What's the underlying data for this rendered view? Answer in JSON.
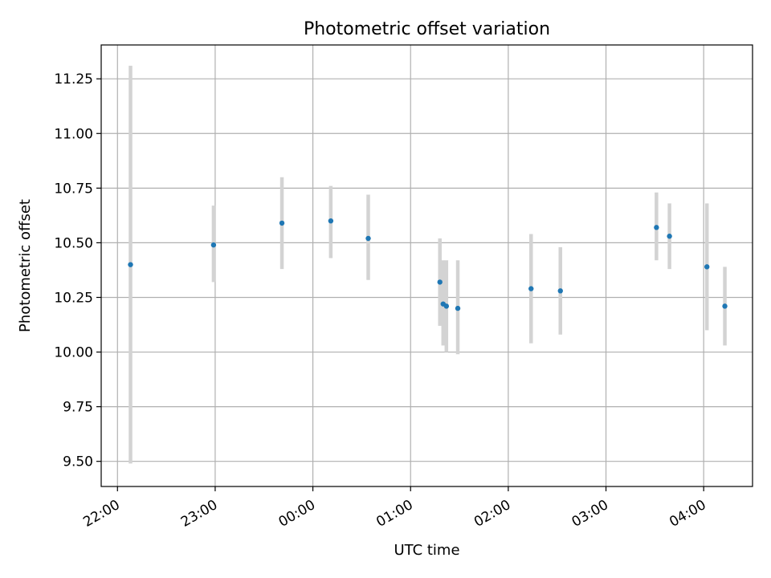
{
  "chart_data": {
    "type": "scatter",
    "title": "Photometric offset variation",
    "xlabel": "UTC time",
    "ylabel": "Photometric offset",
    "x_ticks": [
      "22:00",
      "23:00",
      "00:00",
      "01:00",
      "02:00",
      "03:00",
      "04:00"
    ],
    "y_ticks": [
      "9.50",
      "9.75",
      "10.00",
      "10.25",
      "10.50",
      "10.75",
      "11.00",
      "11.25"
    ],
    "y_tick_values": [
      9.5,
      9.75,
      10.0,
      10.25,
      10.5,
      10.75,
      11.0,
      11.25
    ],
    "xlim": [
      "21:50",
      "04:30"
    ],
    "ylim": [
      9.385,
      11.405
    ],
    "grid": true,
    "colors": {
      "points": "#1f77b4",
      "errorbars": "#d3d3d3",
      "grid": "#b0b0b0"
    },
    "points": [
      {
        "time": "22:08",
        "y": 10.4,
        "yerr_low": 9.49,
        "yerr_high": 11.31
      },
      {
        "time": "22:59",
        "y": 10.49,
        "yerr_low": 10.32,
        "yerr_high": 10.67
      },
      {
        "time": "23:41",
        "y": 10.59,
        "yerr_low": 10.38,
        "yerr_high": 10.8
      },
      {
        "time": "00:11",
        "y": 10.6,
        "yerr_low": 10.43,
        "yerr_high": 10.76
      },
      {
        "time": "00:34",
        "y": 10.52,
        "yerr_low": 10.33,
        "yerr_high": 10.72
      },
      {
        "time": "01:18",
        "y": 10.32,
        "yerr_low": 10.12,
        "yerr_high": 10.52
      },
      {
        "time": "01:20",
        "y": 10.22,
        "yerr_low": 10.03,
        "yerr_high": 10.42
      },
      {
        "time": "01:22",
        "y": 10.21,
        "yerr_low": 10.0,
        "yerr_high": 10.42
      },
      {
        "time": "01:29",
        "y": 10.2,
        "yerr_low": 9.99,
        "yerr_high": 10.42
      },
      {
        "time": "02:14",
        "y": 10.29,
        "yerr_low": 10.04,
        "yerr_high": 10.54
      },
      {
        "time": "02:32",
        "y": 10.28,
        "yerr_low": 10.08,
        "yerr_high": 10.48
      },
      {
        "time": "03:31",
        "y": 10.57,
        "yerr_low": 10.42,
        "yerr_high": 10.73
      },
      {
        "time": "03:39",
        "y": 10.53,
        "yerr_low": 10.38,
        "yerr_high": 10.68
      },
      {
        "time": "04:02",
        "y": 10.39,
        "yerr_low": 10.1,
        "yerr_high": 10.68
      },
      {
        "time": "04:13",
        "y": 10.21,
        "yerr_low": 10.03,
        "yerr_high": 10.39
      }
    ]
  }
}
